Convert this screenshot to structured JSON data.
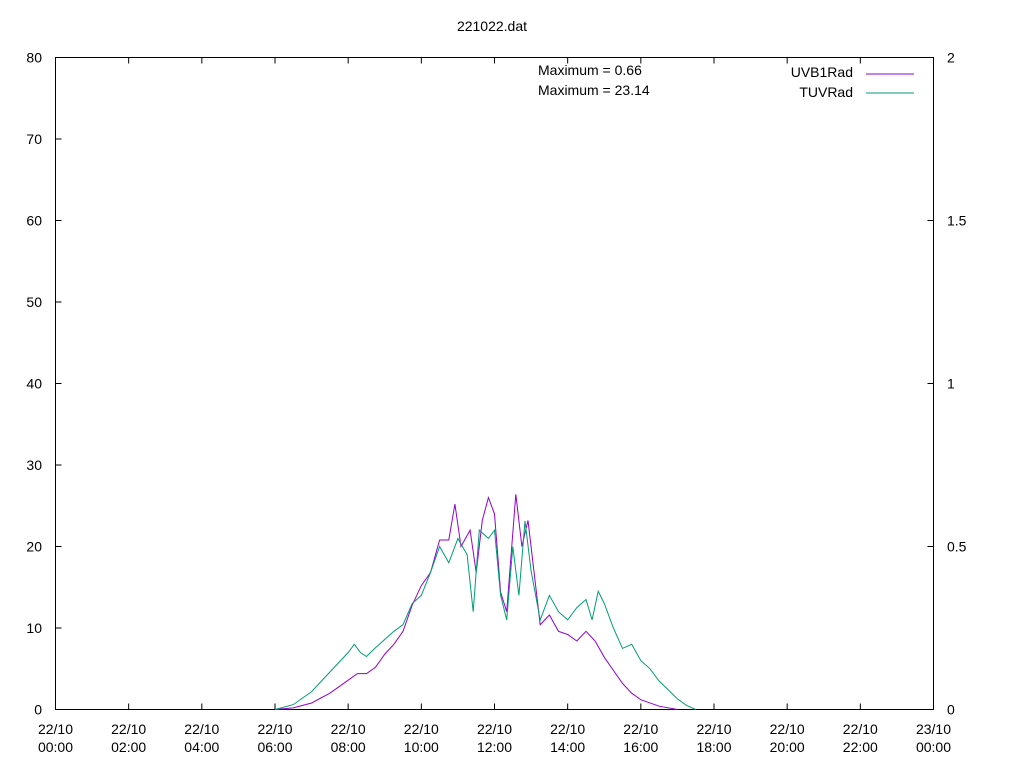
{
  "chart_data": {
    "type": "line",
    "title": "221022.dat",
    "xlabel": "",
    "ylabel": "",
    "x_range": [
      "22/10 00:00",
      "23/10 00:00"
    ],
    "x_ticks": [
      {
        "date": "22/10",
        "time": "00:00"
      },
      {
        "date": "22/10",
        "time": "02:00"
      },
      {
        "date": "22/10",
        "time": "04:00"
      },
      {
        "date": "22/10",
        "time": "06:00"
      },
      {
        "date": "22/10",
        "time": "08:00"
      },
      {
        "date": "22/10",
        "time": "10:00"
      },
      {
        "date": "22/10",
        "time": "12:00"
      },
      {
        "date": "22/10",
        "time": "14:00"
      },
      {
        "date": "22/10",
        "time": "16:00"
      },
      {
        "date": "22/10",
        "time": "18:00"
      },
      {
        "date": "22/10",
        "time": "20:00"
      },
      {
        "date": "22/10",
        "time": "22:00"
      },
      {
        "date": "23/10",
        "time": "00:00"
      }
    ],
    "y_left": {
      "ylim": [
        0,
        80
      ],
      "ticks": [
        "0",
        "10",
        "20",
        "30",
        "40",
        "50",
        "60",
        "70",
        "80"
      ]
    },
    "y_right": {
      "ylim": [
        0,
        2
      ],
      "ticks": [
        "0",
        "0.5",
        "1",
        "1.5",
        "2"
      ]
    },
    "grid": false,
    "legend_position": "top-right",
    "annotations": [
      "Maximum = 0.66",
      "Maximum = 23.14"
    ],
    "series": [
      {
        "name": "UVB1Rad",
        "color": "#9400d3",
        "axis": "right",
        "points": [
          [
            "06:00",
            0.0
          ],
          [
            "06:30",
            0.005
          ],
          [
            "07:00",
            0.02
          ],
          [
            "07:30",
            0.05
          ],
          [
            "08:00",
            0.09
          ],
          [
            "08:15",
            0.11
          ],
          [
            "08:30",
            0.11
          ],
          [
            "08:45",
            0.13
          ],
          [
            "09:00",
            0.17
          ],
          [
            "09:15",
            0.2
          ],
          [
            "09:30",
            0.24
          ],
          [
            "09:45",
            0.32
          ],
          [
            "10:00",
            0.38
          ],
          [
            "10:15",
            0.42
          ],
          [
            "10:30",
            0.52
          ],
          [
            "10:45",
            0.52
          ],
          [
            "10:55",
            0.63
          ],
          [
            "11:05",
            0.5
          ],
          [
            "11:20",
            0.55
          ],
          [
            "11:30",
            0.42
          ],
          [
            "11:40",
            0.58
          ],
          [
            "11:50",
            0.65
          ],
          [
            "12:00",
            0.6
          ],
          [
            "12:10",
            0.36
          ],
          [
            "12:20",
            0.3
          ],
          [
            "12:35",
            0.66
          ],
          [
            "12:45",
            0.5
          ],
          [
            "12:55",
            0.58
          ],
          [
            "13:05",
            0.42
          ],
          [
            "13:15",
            0.26
          ],
          [
            "13:30",
            0.29
          ],
          [
            "13:45",
            0.24
          ],
          [
            "14:00",
            0.23
          ],
          [
            "14:15",
            0.21
          ],
          [
            "14:30",
            0.24
          ],
          [
            "14:45",
            0.21
          ],
          [
            "15:00",
            0.16
          ],
          [
            "15:15",
            0.12
          ],
          [
            "15:30",
            0.08
          ],
          [
            "15:45",
            0.05
          ],
          [
            "16:00",
            0.03
          ],
          [
            "16:30",
            0.01
          ],
          [
            "17:00",
            0.0
          ]
        ]
      },
      {
        "name": "TUVRad",
        "color": "#009e73",
        "axis": "left",
        "points": [
          [
            "06:00",
            0.0
          ],
          [
            "06:30",
            0.6
          ],
          [
            "07:00",
            2.2
          ],
          [
            "07:30",
            4.6
          ],
          [
            "08:00",
            7.0
          ],
          [
            "08:10",
            8.0
          ],
          [
            "08:20",
            7.0
          ],
          [
            "08:30",
            6.5
          ],
          [
            "08:45",
            7.6
          ],
          [
            "09:00",
            8.6
          ],
          [
            "09:15",
            9.6
          ],
          [
            "09:30",
            10.4
          ],
          [
            "09:45",
            13.0
          ],
          [
            "10:00",
            14.0
          ],
          [
            "10:15",
            16.8
          ],
          [
            "10:30",
            20.0
          ],
          [
            "10:45",
            18.0
          ],
          [
            "11:00",
            21.0
          ],
          [
            "11:15",
            19.0
          ],
          [
            "11:25",
            12.0
          ],
          [
            "11:35",
            22.0
          ],
          [
            "11:50",
            21.0
          ],
          [
            "12:00",
            22.0
          ],
          [
            "12:10",
            14.0
          ],
          [
            "12:20",
            11.0
          ],
          [
            "12:30",
            20.0
          ],
          [
            "12:40",
            14.0
          ],
          [
            "12:50",
            23.14
          ],
          [
            "13:00",
            17.0
          ],
          [
            "13:15",
            11.0
          ],
          [
            "13:30",
            14.0
          ],
          [
            "13:45",
            12.0
          ],
          [
            "14:00",
            11.0
          ],
          [
            "14:15",
            12.5
          ],
          [
            "14:30",
            13.5
          ],
          [
            "14:40",
            11.0
          ],
          [
            "14:50",
            14.5
          ],
          [
            "15:00",
            13.0
          ],
          [
            "15:15",
            10.0
          ],
          [
            "15:30",
            7.5
          ],
          [
            "15:45",
            8.0
          ],
          [
            "16:00",
            6.0
          ],
          [
            "16:15",
            5.0
          ],
          [
            "16:30",
            3.5
          ],
          [
            "16:45",
            2.4
          ],
          [
            "17:00",
            1.3
          ],
          [
            "17:15",
            0.5
          ],
          [
            "17:30",
            0.0
          ]
        ]
      }
    ]
  }
}
